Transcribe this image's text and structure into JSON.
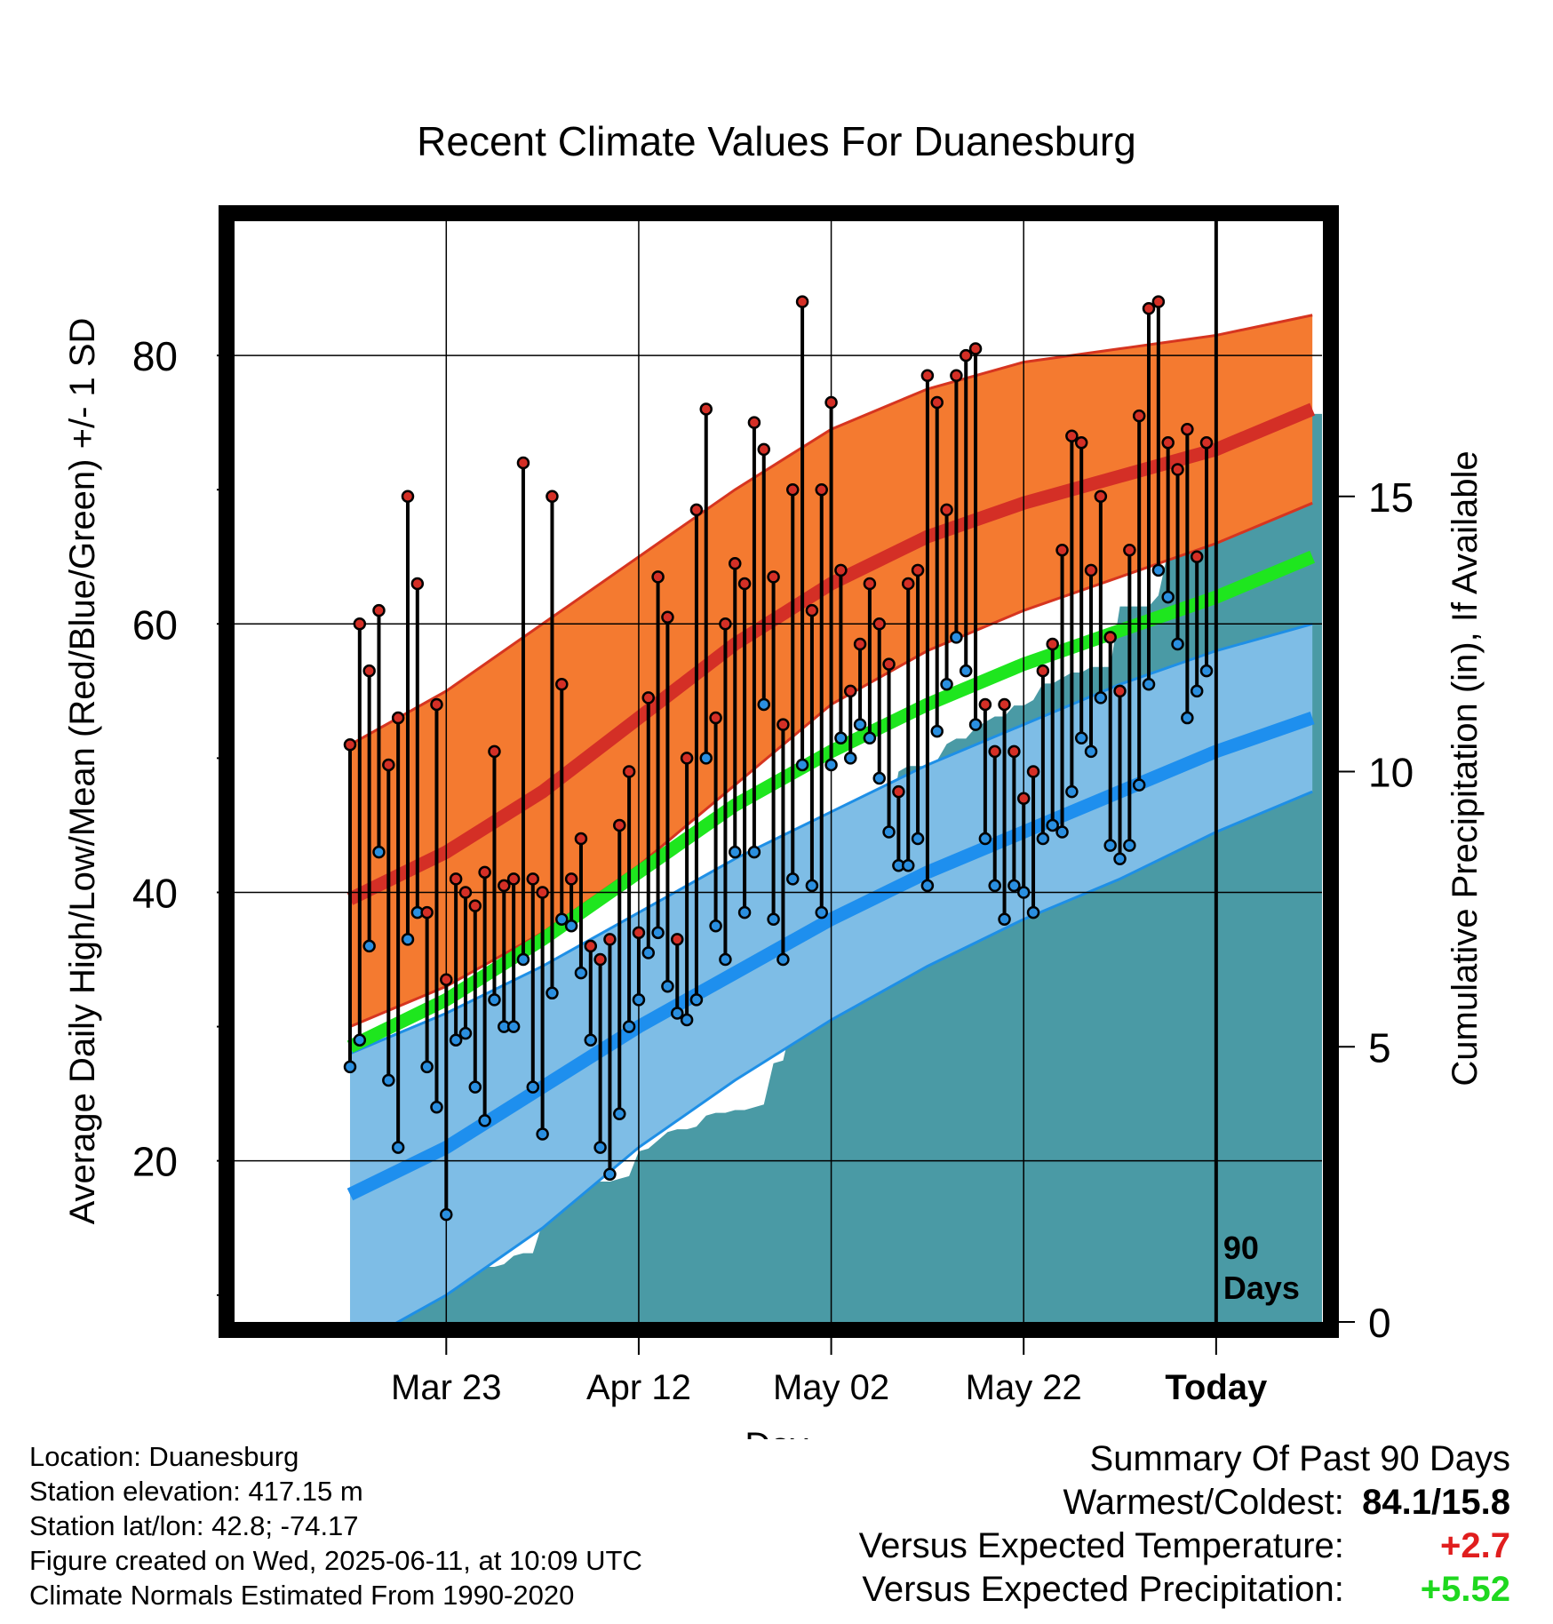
{
  "chart_data": {
    "type": "line",
    "title": "Recent Climate Values For Duanesburg",
    "xlabel": "Day",
    "ylabel": "Average Daily High/Low/Mean (Red/Blue/Green) +/- 1 SD",
    "y2label": "Cumulative Precipitation (in), If Available",
    "x_range": [
      -12,
      101
    ],
    "ylim": [
      8,
      90
    ],
    "y2lim": [
      0,
      20
    ],
    "x_tick_positions": [
      10,
      30,
      50,
      70,
      90
    ],
    "x_ticks": [
      "Mar 23",
      "Apr 12",
      "May 02",
      "May 22",
      "Today"
    ],
    "y_ticks": [
      20,
      40,
      60,
      80
    ],
    "y_minor_ticks": [
      10,
      30,
      50,
      70
    ],
    "y2_ticks": [
      0,
      5,
      10,
      15
    ],
    "grid": true,
    "window_label": "90\nDays",
    "colors": {
      "high_band": "#f47a30",
      "high_edge": "#d63520",
      "high_mean": "#d42f26",
      "low_band": "#7ebde6",
      "low_edge": "#1e8fe6",
      "low_mean": "#1e8fee",
      "mean_line": "#1ee61e",
      "precip": "#4a9aa5",
      "high_dot": "#d42f26",
      "low_dot": "#2a8fe0"
    },
    "normals": {
      "x": [
        0,
        10,
        20,
        30,
        40,
        50,
        60,
        70,
        80,
        90,
        100
      ],
      "high_mean": [
        39.5,
        43.0,
        47.5,
        53.0,
        58.5,
        63.0,
        66.5,
        69.0,
        71.0,
        73.0,
        76.0
      ],
      "high_upper": [
        51,
        55,
        60,
        65,
        70,
        74.5,
        77.5,
        79.5,
        80.5,
        81.5,
        83
      ],
      "high_lower": [
        30,
        33,
        37,
        42,
        48,
        54,
        58,
        61,
        63.5,
        66,
        69
      ],
      "low_mean": [
        17.5,
        21.0,
        25.5,
        30.0,
        34.0,
        38.0,
        41.5,
        44.5,
        47.5,
        50.5,
        53.0
      ],
      "low_upper": [
        28,
        31,
        34.5,
        38.5,
        42.5,
        46,
        49.5,
        52.5,
        55.5,
        58,
        60
      ],
      "low_lower": [
        6,
        10,
        15,
        21,
        26,
        30.5,
        34.5,
        38,
        41,
        44.5,
        47.5
      ],
      "mean": [
        28.5,
        32.0,
        36.5,
        41.5,
        46.5,
        50.5,
        54.0,
        57.0,
        59.5,
        62.0,
        65.0
      ]
    },
    "series": [
      {
        "name": "High",
        "x": [
          0,
          1,
          2,
          3,
          4,
          5,
          6,
          7,
          8,
          9,
          10,
          11,
          12,
          13,
          14,
          15,
          16,
          17,
          18,
          19,
          20,
          21,
          22,
          23,
          24,
          25,
          26,
          27,
          28,
          29,
          30,
          31,
          32,
          33,
          34,
          35,
          36,
          37,
          38,
          39,
          40,
          41,
          42,
          43,
          44,
          45,
          46,
          47,
          48,
          49,
          50,
          51,
          52,
          53,
          54,
          55,
          56,
          57,
          58,
          59,
          60,
          61,
          62,
          63,
          64,
          65,
          66,
          67,
          68,
          69,
          70,
          71,
          72,
          73,
          74,
          75,
          76,
          77,
          78,
          79,
          80,
          81,
          82,
          83,
          84,
          85,
          86,
          87,
          88,
          89
        ],
        "values": [
          51,
          60,
          56.5,
          61,
          49.5,
          53,
          69.5,
          63,
          38.5,
          54,
          33.5,
          41,
          40,
          39,
          41.5,
          50.5,
          40.5,
          41,
          72,
          41,
          40,
          69.5,
          55.5,
          41,
          44,
          36,
          35,
          36.5,
          45,
          49,
          37,
          54.5,
          63.5,
          60.5,
          36.5,
          50,
          68.5,
          76,
          53,
          60,
          64.5,
          63,
          75,
          73,
          63.5,
          52.5,
          70,
          84,
          61,
          70,
          76.5,
          64,
          55,
          58.5,
          63,
          60,
          57,
          47.5,
          63,
          64,
          78.5,
          76.5,
          68.5,
          78.5,
          80,
          80.5,
          54,
          50.5,
          54,
          50.5,
          47,
          49,
          56.5,
          58.5,
          65.5,
          74,
          73.5,
          64,
          69.5,
          59,
          55,
          65.5,
          75.5,
          83.5,
          84,
          73.5,
          71.5,
          74.5,
          65,
          73.5
        ]
      },
      {
        "name": "Low",
        "x": [
          0,
          1,
          2,
          3,
          4,
          5,
          6,
          7,
          8,
          9,
          10,
          11,
          12,
          13,
          14,
          15,
          16,
          17,
          18,
          19,
          20,
          21,
          22,
          23,
          24,
          25,
          26,
          27,
          28,
          29,
          30,
          31,
          32,
          33,
          34,
          35,
          36,
          37,
          38,
          39,
          40,
          41,
          42,
          43,
          44,
          45,
          46,
          47,
          48,
          49,
          50,
          51,
          52,
          53,
          54,
          55,
          56,
          57,
          58,
          59,
          60,
          61,
          62,
          63,
          64,
          65,
          66,
          67,
          68,
          69,
          70,
          71,
          72,
          73,
          74,
          75,
          76,
          77,
          78,
          79,
          80,
          81,
          82,
          83,
          84,
          85,
          86,
          87,
          88,
          89
        ],
        "values": [
          27,
          29,
          36,
          43,
          26,
          21,
          36.5,
          38.5,
          27,
          24,
          16,
          29,
          29.5,
          25.5,
          23,
          32,
          30,
          30,
          35,
          25.5,
          22,
          32.5,
          38,
          37.5,
          34,
          29,
          21,
          19,
          23.5,
          30,
          32,
          35.5,
          37,
          33,
          31,
          30.5,
          32,
          50,
          37.5,
          35,
          43,
          38.5,
          43,
          54,
          38,
          35,
          41,
          49.5,
          40.5,
          38.5,
          49.5,
          51.5,
          50,
          52.5,
          51.5,
          48.5,
          44.5,
          42,
          42,
          44,
          40.5,
          52,
          55.5,
          59,
          56.5,
          52.5,
          44,
          40.5,
          38,
          40.5,
          40,
          38.5,
          44,
          45,
          44.5,
          47.5,
          51.5,
          50.5,
          54.5,
          43.5,
          42.5,
          43.5,
          48,
          55.5,
          64,
          62,
          58.5,
          53,
          55,
          56.5
        ]
      }
    ],
    "precip_cumulative": {
      "x": [
        0,
        3,
        4,
        5,
        6,
        7,
        8,
        9,
        10,
        11,
        12,
        13,
        14,
        15,
        16,
        17,
        18,
        19,
        20,
        21,
        22,
        23,
        24,
        25,
        26,
        27,
        28,
        29,
        30,
        31,
        32,
        33,
        34,
        35,
        36,
        37,
        38,
        39,
        40,
        41,
        42,
        43,
        44,
        45,
        46,
        47,
        48,
        49,
        50,
        51,
        52,
        53,
        54,
        55,
        56,
        57,
        58,
        59,
        60,
        61,
        62,
        63,
        64,
        65,
        66,
        67,
        68,
        69,
        70,
        71,
        72,
        73,
        74,
        75,
        76,
        77,
        78,
        79,
        80,
        81,
        82,
        83,
        84,
        85,
        86,
        87,
        88,
        89,
        90,
        101
      ],
      "values": [
        0,
        0,
        0.4,
        0.5,
        0.5,
        0.5,
        0.8,
        0.8,
        0.9,
        0.9,
        0.95,
        0.95,
        1.0,
        1.0,
        1.05,
        1.2,
        1.25,
        1.25,
        1.8,
        1.85,
        2.3,
        2.35,
        2.45,
        2.5,
        2.55,
        2.55,
        2.6,
        2.65,
        3.1,
        3.15,
        3.3,
        3.45,
        3.5,
        3.5,
        3.55,
        3.75,
        3.8,
        3.8,
        3.85,
        3.85,
        3.9,
        3.95,
        4.7,
        4.75,
        5.5,
        5.6,
        5.65,
        5.7,
        6.0,
        7.2,
        7.8,
        8.5,
        8.7,
        9.0,
        9.0,
        10.0,
        10.1,
        10.1,
        10.1,
        10.2,
        10.5,
        10.6,
        10.6,
        10.8,
        10.9,
        11.0,
        11.0,
        11.2,
        11.2,
        11.3,
        11.6,
        11.6,
        11.7,
        11.8,
        11.8,
        11.9,
        11.9,
        11.9,
        13.0,
        13.0,
        13.0,
        13.0,
        13.2,
        14.0,
        14.6,
        15.4,
        15.8,
        16.3,
        16.5,
        16.5
      ]
    }
  },
  "info": {
    "location": "Location: Duanesburg",
    "elevation": "Station elevation: 417.15 m",
    "latlon": "Station lat/lon: 42.8; -74.17",
    "created": "Figure created on Wed, 2025-06-11, at 10:09 UTC",
    "normals": "Climate Normals Estimated From 1990-2020"
  },
  "summary": {
    "heading": "Summary Of Past 90 Days",
    "warmest_label": "Warmest/Coldest:",
    "warmest_value": "84.1/15.8",
    "temp_label": "Versus Expected Temperature:",
    "temp_value": "+2.7",
    "temp_color": "#e01e1e",
    "precip_label": "Versus Expected Precipitation:",
    "precip_value": "+5.52",
    "precip_color": "#1ed81e"
  }
}
